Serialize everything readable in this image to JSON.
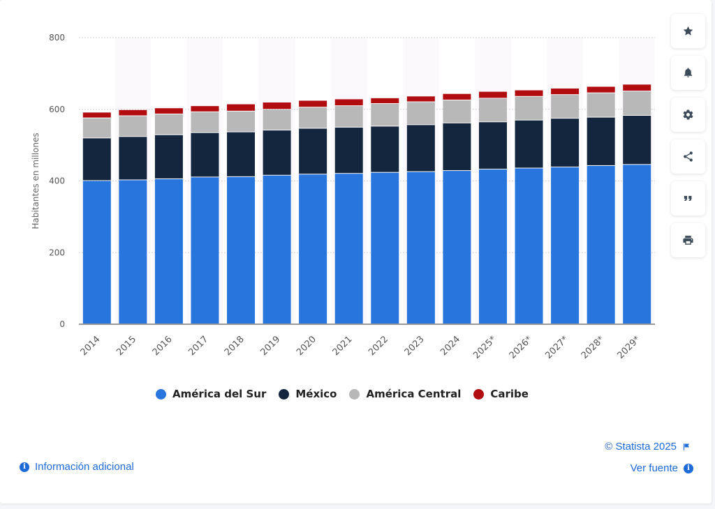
{
  "chart_data": {
    "type": "bar",
    "stacked": true,
    "categories": [
      "2014",
      "2015",
      "2016",
      "2017",
      "2018",
      "2019",
      "2020",
      "2021",
      "2022",
      "2023",
      "2024",
      "2025*",
      "2026*",
      "2027*",
      "2028*",
      "2029*"
    ],
    "series": [
      {
        "name": "América del Sur",
        "color": "#2876dd",
        "values": [
          400,
          402,
          405,
          410,
          411,
          415,
          418,
          420,
          423,
          425,
          428,
          432,
          435,
          438,
          442,
          445
        ]
      },
      {
        "name": "México",
        "color": "#13263d",
        "values": [
          119,
          121,
          123,
          124,
          125,
          126,
          128,
          129,
          129,
          131,
          133,
          132,
          134,
          136,
          135,
          137
        ]
      },
      {
        "name": "América Central",
        "color": "#b8b8b8",
        "values": [
          56,
          58,
          58,
          58,
          58,
          58,
          59,
          60,
          63,
          64,
          64,
          66,
          66,
          66,
          68,
          68
        ]
      },
      {
        "name": "Caribe",
        "color": "#b10c10",
        "values": [
          16,
          17,
          17,
          17,
          20,
          20,
          19,
          19,
          16,
          16,
          18,
          19,
          18,
          18,
          18,
          19
        ]
      }
    ],
    "ylabel": "Habitantes en millones",
    "xlabel": "",
    "ylim": [
      0,
      800
    ],
    "yticks": [
      0,
      200,
      400,
      600,
      800
    ],
    "grid": true,
    "legend_position": "bottom"
  },
  "toolbar": {
    "buttons": [
      {
        "icon": "star-icon",
        "label": "favorite"
      },
      {
        "icon": "bell-icon",
        "label": "notification"
      },
      {
        "icon": "gear-icon",
        "label": "settings"
      },
      {
        "icon": "share-icon",
        "label": "share"
      },
      {
        "icon": "quote-icon",
        "label": "cite"
      },
      {
        "icon": "print-icon",
        "label": "print"
      }
    ]
  },
  "footer": {
    "info_label": "Información adicional",
    "copyright": "© Statista 2025",
    "source_label": "Ver fuente"
  }
}
